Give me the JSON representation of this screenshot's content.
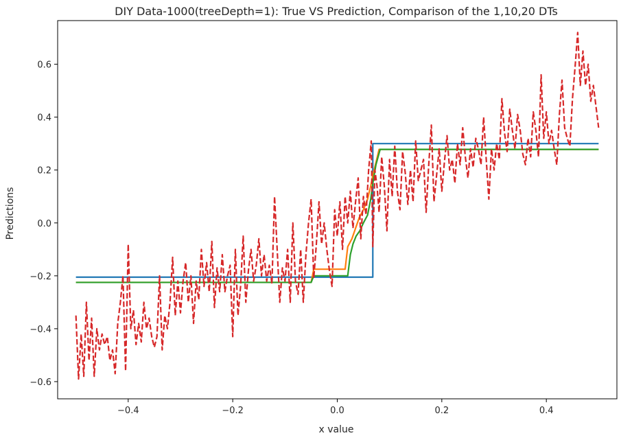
{
  "chart_data": {
    "type": "line",
    "title": "DIY Data-1000(treeDepth=1): True VS Prediction, Comparison of the 1,10,20 DTs",
    "xlabel": "x value",
    "ylabel": "Predictions",
    "xlim": [
      -0.535,
      0.535
    ],
    "ylim": [
      -0.665,
      0.765
    ],
    "xticks": [
      -0.4,
      -0.2,
      0.0,
      0.2,
      0.4
    ],
    "xtick_labels": [
      "−0.4",
      "−0.2",
      "0.0",
      "0.2",
      "0.4"
    ],
    "yticks": [
      -0.6,
      -0.4,
      -0.2,
      0.0,
      0.2,
      0.4,
      0.6
    ],
    "ytick_labels": [
      "−0.6",
      "−0.4",
      "−0.2",
      "0.0",
      "0.2",
      "0.4",
      "0.6"
    ],
    "grid": false,
    "series": [
      {
        "color": "#1f77b4",
        "style": "solid",
        "points": [
          [
            -0.5,
            -0.205
          ],
          [
            0.068,
            -0.205
          ],
          [
            0.068,
            0.3
          ],
          [
            0.5,
            0.3
          ]
        ]
      },
      {
        "color": "#ff7f0e",
        "style": "solid",
        "points": [
          [
            -0.5,
            -0.225
          ],
          [
            -0.05,
            -0.225
          ],
          [
            -0.045,
            -0.175
          ],
          [
            0.015,
            -0.175
          ],
          [
            0.02,
            -0.09
          ],
          [
            0.028,
            -0.06
          ],
          [
            0.035,
            -0.02
          ],
          [
            0.042,
            0.02
          ],
          [
            0.05,
            0.05
          ],
          [
            0.058,
            0.09
          ],
          [
            0.064,
            0.14
          ],
          [
            0.068,
            0.18
          ],
          [
            0.073,
            0.22
          ],
          [
            0.08,
            0.278
          ],
          [
            0.5,
            0.278
          ]
        ]
      },
      {
        "color": "#2ca02c",
        "style": "solid",
        "points": [
          [
            -0.5,
            -0.225
          ],
          [
            -0.05,
            -0.225
          ],
          [
            -0.045,
            -0.2
          ],
          [
            0.02,
            -0.2
          ],
          [
            0.025,
            -0.12
          ],
          [
            0.03,
            -0.08
          ],
          [
            0.036,
            -0.05
          ],
          [
            0.043,
            -0.03
          ],
          [
            0.05,
            0.0
          ],
          [
            0.058,
            0.03
          ],
          [
            0.064,
            0.09
          ],
          [
            0.068,
            0.15
          ],
          [
            0.074,
            0.22
          ],
          [
            0.082,
            0.278
          ],
          [
            0.5,
            0.278
          ]
        ]
      },
      {
        "color": "#d62728",
        "style": "dashed",
        "points": [
          [
            -0.5,
            -0.35
          ],
          [
            -0.495,
            -0.59
          ],
          [
            -0.49,
            -0.42
          ],
          [
            -0.485,
            -0.58
          ],
          [
            -0.48,
            -0.3
          ],
          [
            -0.475,
            -0.52
          ],
          [
            -0.47,
            -0.36
          ],
          [
            -0.465,
            -0.58
          ],
          [
            -0.46,
            -0.4
          ],
          [
            -0.455,
            -0.48
          ],
          [
            -0.45,
            -0.42
          ],
          [
            -0.445,
            -0.46
          ],
          [
            -0.44,
            -0.43
          ],
          [
            -0.435,
            -0.52
          ],
          [
            -0.43,
            -0.48
          ],
          [
            -0.425,
            -0.57
          ],
          [
            -0.42,
            -0.38
          ],
          [
            -0.415,
            -0.3
          ],
          [
            -0.41,
            -0.2
          ],
          [
            -0.405,
            -0.56
          ],
          [
            -0.4,
            -0.08
          ],
          [
            -0.395,
            -0.4
          ],
          [
            -0.39,
            -0.33
          ],
          [
            -0.385,
            -0.46
          ],
          [
            -0.38,
            -0.38
          ],
          [
            -0.375,
            -0.45
          ],
          [
            -0.37,
            -0.3
          ],
          [
            -0.365,
            -0.4
          ],
          [
            -0.36,
            -0.36
          ],
          [
            -0.355,
            -0.43
          ],
          [
            -0.35,
            -0.47
          ],
          [
            -0.345,
            -0.43
          ],
          [
            -0.34,
            -0.2
          ],
          [
            -0.335,
            -0.48
          ],
          [
            -0.33,
            -0.35
          ],
          [
            -0.325,
            -0.4
          ],
          [
            -0.32,
            -0.3
          ],
          [
            -0.315,
            -0.13
          ],
          [
            -0.31,
            -0.35
          ],
          [
            -0.305,
            -0.22
          ],
          [
            -0.3,
            -0.34
          ],
          [
            -0.295,
            -0.22
          ],
          [
            -0.29,
            -0.15
          ],
          [
            -0.285,
            -0.3
          ],
          [
            -0.28,
            -0.2
          ],
          [
            -0.275,
            -0.38
          ],
          [
            -0.27,
            -0.22
          ],
          [
            -0.265,
            -0.29
          ],
          [
            -0.26,
            -0.1
          ],
          [
            -0.255,
            -0.24
          ],
          [
            -0.25,
            -0.15
          ],
          [
            -0.245,
            -0.26
          ],
          [
            -0.24,
            -0.07
          ],
          [
            -0.235,
            -0.32
          ],
          [
            -0.23,
            -0.17
          ],
          [
            -0.225,
            -0.26
          ],
          [
            -0.22,
            -0.12
          ],
          [
            -0.215,
            -0.26
          ],
          [
            -0.21,
            -0.2
          ],
          [
            -0.205,
            -0.16
          ],
          [
            -0.2,
            -0.43
          ],
          [
            -0.195,
            -0.1
          ],
          [
            -0.19,
            -0.35
          ],
          [
            -0.185,
            -0.24
          ],
          [
            -0.18,
            -0.05
          ],
          [
            -0.175,
            -0.3
          ],
          [
            -0.17,
            -0.18
          ],
          [
            -0.165,
            -0.1
          ],
          [
            -0.16,
            -0.22
          ],
          [
            -0.155,
            -0.16
          ],
          [
            -0.15,
            -0.06
          ],
          [
            -0.145,
            -0.2
          ],
          [
            -0.14,
            -0.12
          ],
          [
            -0.135,
            -0.22
          ],
          [
            -0.13,
            -0.16
          ],
          [
            -0.125,
            -0.23
          ],
          [
            -0.12,
            0.1
          ],
          [
            -0.115,
            -0.1
          ],
          [
            -0.11,
            -0.3
          ],
          [
            -0.105,
            -0.17
          ],
          [
            -0.1,
            -0.22
          ],
          [
            -0.095,
            -0.1
          ],
          [
            -0.09,
            -0.3
          ],
          [
            -0.085,
            0.0
          ],
          [
            -0.08,
            -0.22
          ],
          [
            -0.075,
            -0.27
          ],
          [
            -0.07,
            -0.1
          ],
          [
            -0.065,
            -0.3
          ],
          [
            -0.06,
            -0.12
          ],
          [
            -0.055,
            0.0
          ],
          [
            -0.05,
            0.09
          ],
          [
            -0.045,
            -0.21
          ],
          [
            -0.04,
            -0.08
          ],
          [
            -0.035,
            0.08
          ],
          [
            -0.03,
            -0.08
          ],
          [
            -0.025,
            0.0
          ],
          [
            -0.02,
            -0.1
          ],
          [
            -0.015,
            -0.18
          ],
          [
            -0.01,
            -0.24
          ],
          [
            -0.005,
            0.05
          ],
          [
            0.0,
            -0.05
          ],
          [
            0.005,
            0.08
          ],
          [
            0.01,
            -0.1
          ],
          [
            0.015,
            0.1
          ],
          [
            0.02,
            0.0
          ],
          [
            0.025,
            0.12
          ],
          [
            0.03,
            -0.02
          ],
          [
            0.035,
            0.08
          ],
          [
            0.04,
            0.17
          ],
          [
            0.045,
            -0.06
          ],
          [
            0.05,
            0.1
          ],
          [
            0.055,
            0.03
          ],
          [
            0.06,
            0.2
          ],
          [
            0.065,
            0.31
          ],
          [
            0.068,
            -0.09
          ],
          [
            0.072,
            0.2
          ],
          [
            0.076,
            0.14
          ],
          [
            0.08,
            0.04
          ],
          [
            0.085,
            0.25
          ],
          [
            0.09,
            0.14
          ],
          [
            0.095,
            -0.03
          ],
          [
            0.1,
            0.24
          ],
          [
            0.105,
            0.1
          ],
          [
            0.11,
            0.29
          ],
          [
            0.115,
            0.12
          ],
          [
            0.12,
            0.05
          ],
          [
            0.125,
            0.27
          ],
          [
            0.13,
            0.19
          ],
          [
            0.135,
            0.07
          ],
          [
            0.14,
            0.2
          ],
          [
            0.145,
            0.08
          ],
          [
            0.15,
            0.31
          ],
          [
            0.155,
            0.16
          ],
          [
            0.16,
            0.2
          ],
          [
            0.165,
            0.24
          ],
          [
            0.17,
            0.04
          ],
          [
            0.175,
            0.22
          ],
          [
            0.18,
            0.37
          ],
          [
            0.185,
            0.08
          ],
          [
            0.19,
            0.18
          ],
          [
            0.195,
            0.28
          ],
          [
            0.2,
            0.12
          ],
          [
            0.205,
            0.23
          ],
          [
            0.21,
            0.33
          ],
          [
            0.215,
            0.2
          ],
          [
            0.22,
            0.24
          ],
          [
            0.225,
            0.15
          ],
          [
            0.23,
            0.3
          ],
          [
            0.235,
            0.22
          ],
          [
            0.24,
            0.36
          ],
          [
            0.245,
            0.25
          ],
          [
            0.25,
            0.17
          ],
          [
            0.255,
            0.28
          ],
          [
            0.26,
            0.21
          ],
          [
            0.265,
            0.32
          ],
          [
            0.27,
            0.28
          ],
          [
            0.275,
            0.22
          ],
          [
            0.28,
            0.4
          ],
          [
            0.285,
            0.24
          ],
          [
            0.29,
            0.09
          ],
          [
            0.295,
            0.28
          ],
          [
            0.3,
            0.2
          ],
          [
            0.305,
            0.3
          ],
          [
            0.31,
            0.24
          ],
          [
            0.315,
            0.47
          ],
          [
            0.32,
            0.34
          ],
          [
            0.325,
            0.27
          ],
          [
            0.33,
            0.43
          ],
          [
            0.335,
            0.35
          ],
          [
            0.34,
            0.28
          ],
          [
            0.345,
            0.41
          ],
          [
            0.35,
            0.35
          ],
          [
            0.355,
            0.26
          ],
          [
            0.36,
            0.22
          ],
          [
            0.365,
            0.32
          ],
          [
            0.37,
            0.25
          ],
          [
            0.375,
            0.42
          ],
          [
            0.38,
            0.35
          ],
          [
            0.385,
            0.25
          ],
          [
            0.39,
            0.56
          ],
          [
            0.395,
            0.32
          ],
          [
            0.4,
            0.42
          ],
          [
            0.405,
            0.3
          ],
          [
            0.41,
            0.35
          ],
          [
            0.415,
            0.28
          ],
          [
            0.42,
            0.22
          ],
          [
            0.425,
            0.41
          ],
          [
            0.43,
            0.54
          ],
          [
            0.435,
            0.36
          ],
          [
            0.44,
            0.32
          ],
          [
            0.445,
            0.29
          ],
          [
            0.45,
            0.47
          ],
          [
            0.455,
            0.59
          ],
          [
            0.46,
            0.72
          ],
          [
            0.465,
            0.52
          ],
          [
            0.47,
            0.65
          ],
          [
            0.475,
            0.52
          ],
          [
            0.48,
            0.6
          ],
          [
            0.485,
            0.46
          ],
          [
            0.49,
            0.52
          ],
          [
            0.495,
            0.44
          ],
          [
            0.5,
            0.36
          ]
        ]
      }
    ]
  }
}
